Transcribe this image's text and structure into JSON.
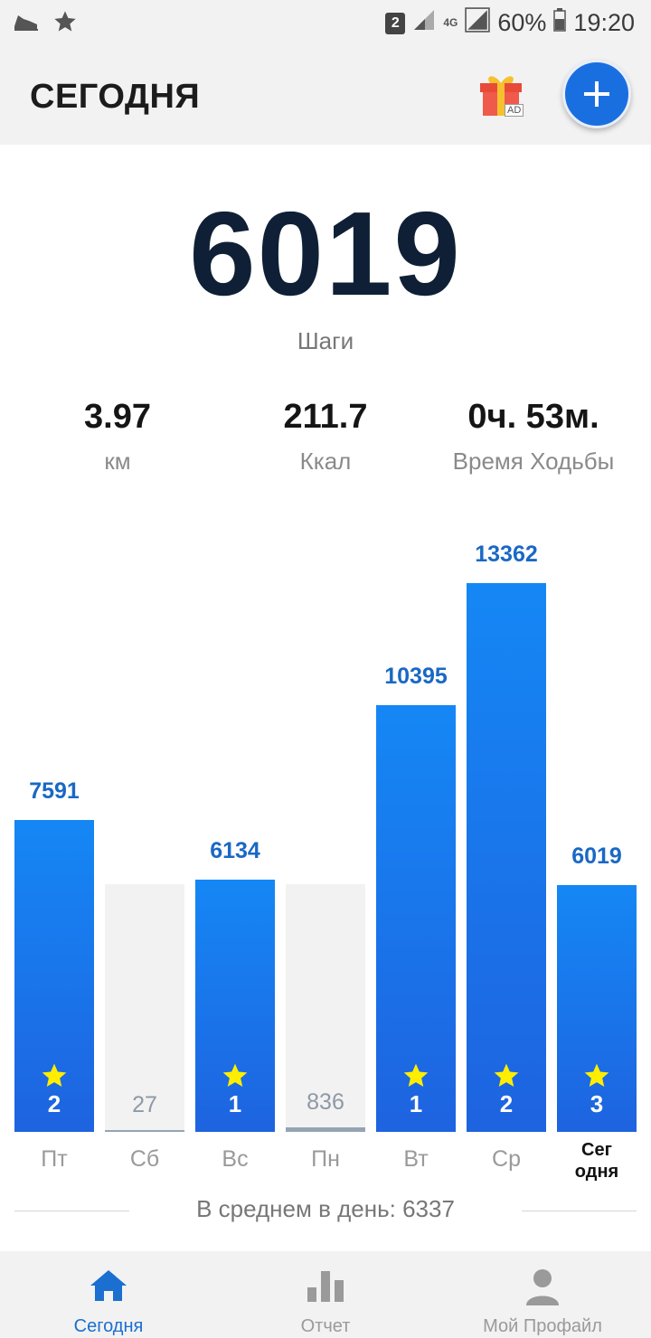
{
  "status_bar": {
    "sim": "2",
    "network": "4G",
    "battery": "60%",
    "time": "19:20"
  },
  "header": {
    "title": "СЕГОДНЯ",
    "ad_badge": "AD"
  },
  "hero": {
    "steps": "6019",
    "steps_label": "Шаги"
  },
  "stats": {
    "distance": {
      "value": "3.97",
      "label": "км"
    },
    "calories": {
      "value": "211.7",
      "label": "Ккал"
    },
    "time": {
      "value": "0ч. 53м.",
      "label": "Время Ходьбы"
    }
  },
  "chart_data": {
    "type": "bar",
    "categories": [
      "Пт",
      "Сб",
      "Вс",
      "Пн",
      "Вт",
      "Ср",
      "Сег одня"
    ],
    "values": [
      7591,
      27,
      6134,
      836,
      10395,
      13362,
      6019
    ],
    "stars": [
      2,
      null,
      1,
      null,
      1,
      2,
      3
    ],
    "goal": 6000
  },
  "average": {
    "text": "В среднем в день: 6337"
  },
  "bottom_nav": {
    "items": [
      {
        "label": "Сегодня",
        "active": true
      },
      {
        "label": "Отчет",
        "active": false
      },
      {
        "label": "Мой Профайл",
        "active": false
      }
    ]
  },
  "colors": {
    "accent": "#1a6fe0",
    "bar_gradient_top": "#1587f5",
    "bar_gradient_bottom": "#1e63e0",
    "bar_low": "#95a4b3",
    "star": "#ffee00"
  }
}
